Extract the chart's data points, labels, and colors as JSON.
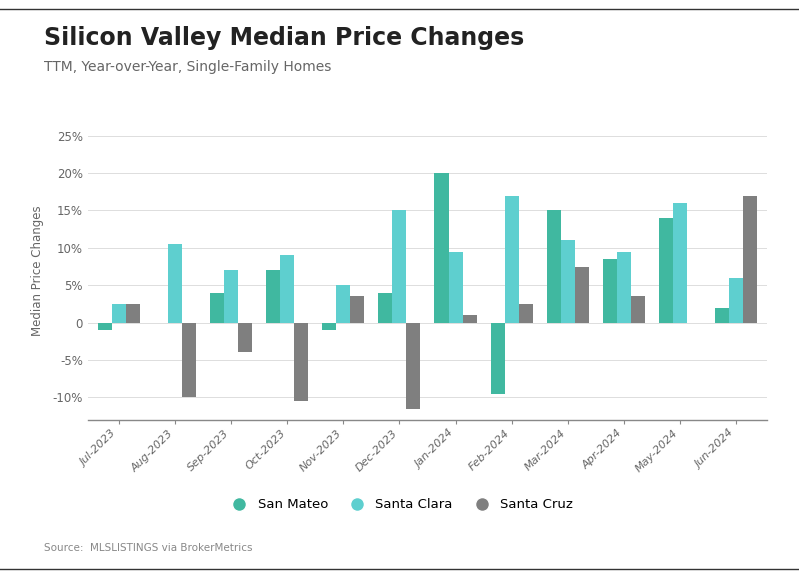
{
  "title": "Silicon Valley Median Price Changes",
  "subtitle": "TTM, Year-over-Year, Single-Family Homes",
  "source": "Source:  MLSLISTINGS via BrokerMetrics",
  "ylabel": "Median Price Changes",
  "categories": [
    "Jul-2023",
    "Aug-2023",
    "Sep-2023",
    "Oct-2023",
    "Nov-2023",
    "Dec-2023",
    "Jan-2024",
    "Feb-2024",
    "Mar-2024",
    "Apr-2024",
    "May-2024",
    "Jun-2024"
  ],
  "san_mateo": [
    -1.0,
    null,
    4.0,
    7.0,
    -1.0,
    4.0,
    20.0,
    -9.5,
    15.0,
    8.5,
    14.0,
    2.0
  ],
  "santa_clara": [
    2.5,
    10.5,
    7.0,
    9.0,
    5.0,
    15.0,
    9.5,
    17.0,
    11.0,
    9.5,
    16.0,
    6.0
  ],
  "santa_cruz": [
    2.5,
    -10.0,
    -4.0,
    -10.5,
    3.5,
    -11.5,
    1.0,
    2.5,
    7.5,
    3.5,
    null,
    17.0
  ],
  "color_san_mateo": "#40b8a0",
  "color_santa_clara": "#5ecfcf",
  "color_santa_cruz": "#7f7f7f",
  "ylim": [
    -13,
    27
  ],
  "yticks": [
    -10,
    -5,
    0,
    5,
    10,
    15,
    20,
    25
  ],
  "background_color": "#ffffff",
  "plot_bg": "#ffffff",
  "title_fontsize": 17,
  "subtitle_fontsize": 10,
  "bar_width": 0.25
}
